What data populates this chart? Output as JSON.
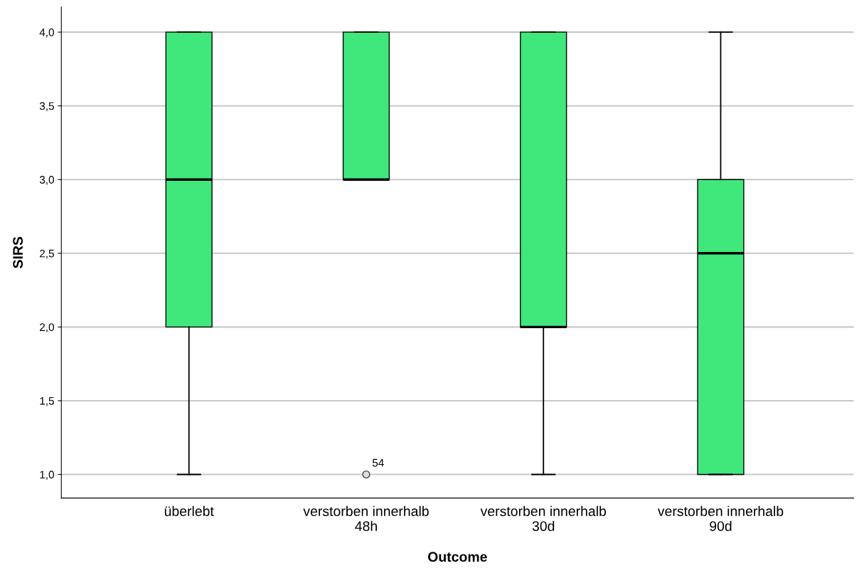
{
  "chart_data": {
    "type": "box",
    "xlabel": "Outcome",
    "ylabel": "SIRS",
    "categories": [
      "überlebt",
      "verstorben innerhalb\n48h",
      "verstorben innerhalb\n30d",
      "verstorben innerhalb\n90d"
    ],
    "color": "#40e87c",
    "boxes": [
      {
        "low": 1,
        "q1": 2,
        "median": 3,
        "q3": 4,
        "high": 4
      },
      {
        "low": 3,
        "q1": 3,
        "median": 3,
        "q3": 4,
        "high": 4,
        "outliers": [
          1
        ]
      },
      {
        "low": 1,
        "q1": 2,
        "median": 2,
        "q3": 4,
        "high": 4
      },
      {
        "low": 1,
        "q1": 1,
        "median": 2.5,
        "q3": 3,
        "high": 4
      }
    ],
    "annotations": [
      "54"
    ],
    "ylim": [
      0.84,
      4.17
    ],
    "yticks": [
      {
        "value": 1,
        "label": "1,0"
      },
      {
        "value": 1.5,
        "label": "1,5"
      },
      {
        "value": 2,
        "label": "2,0"
      },
      {
        "value": 2.5,
        "label": "2,5"
      },
      {
        "value": 3,
        "label": "3,0"
      },
      {
        "value": 3.5,
        "label": "3,5"
      },
      {
        "value": 4,
        "label": "4,0"
      }
    ],
    "grid": "y"
  }
}
